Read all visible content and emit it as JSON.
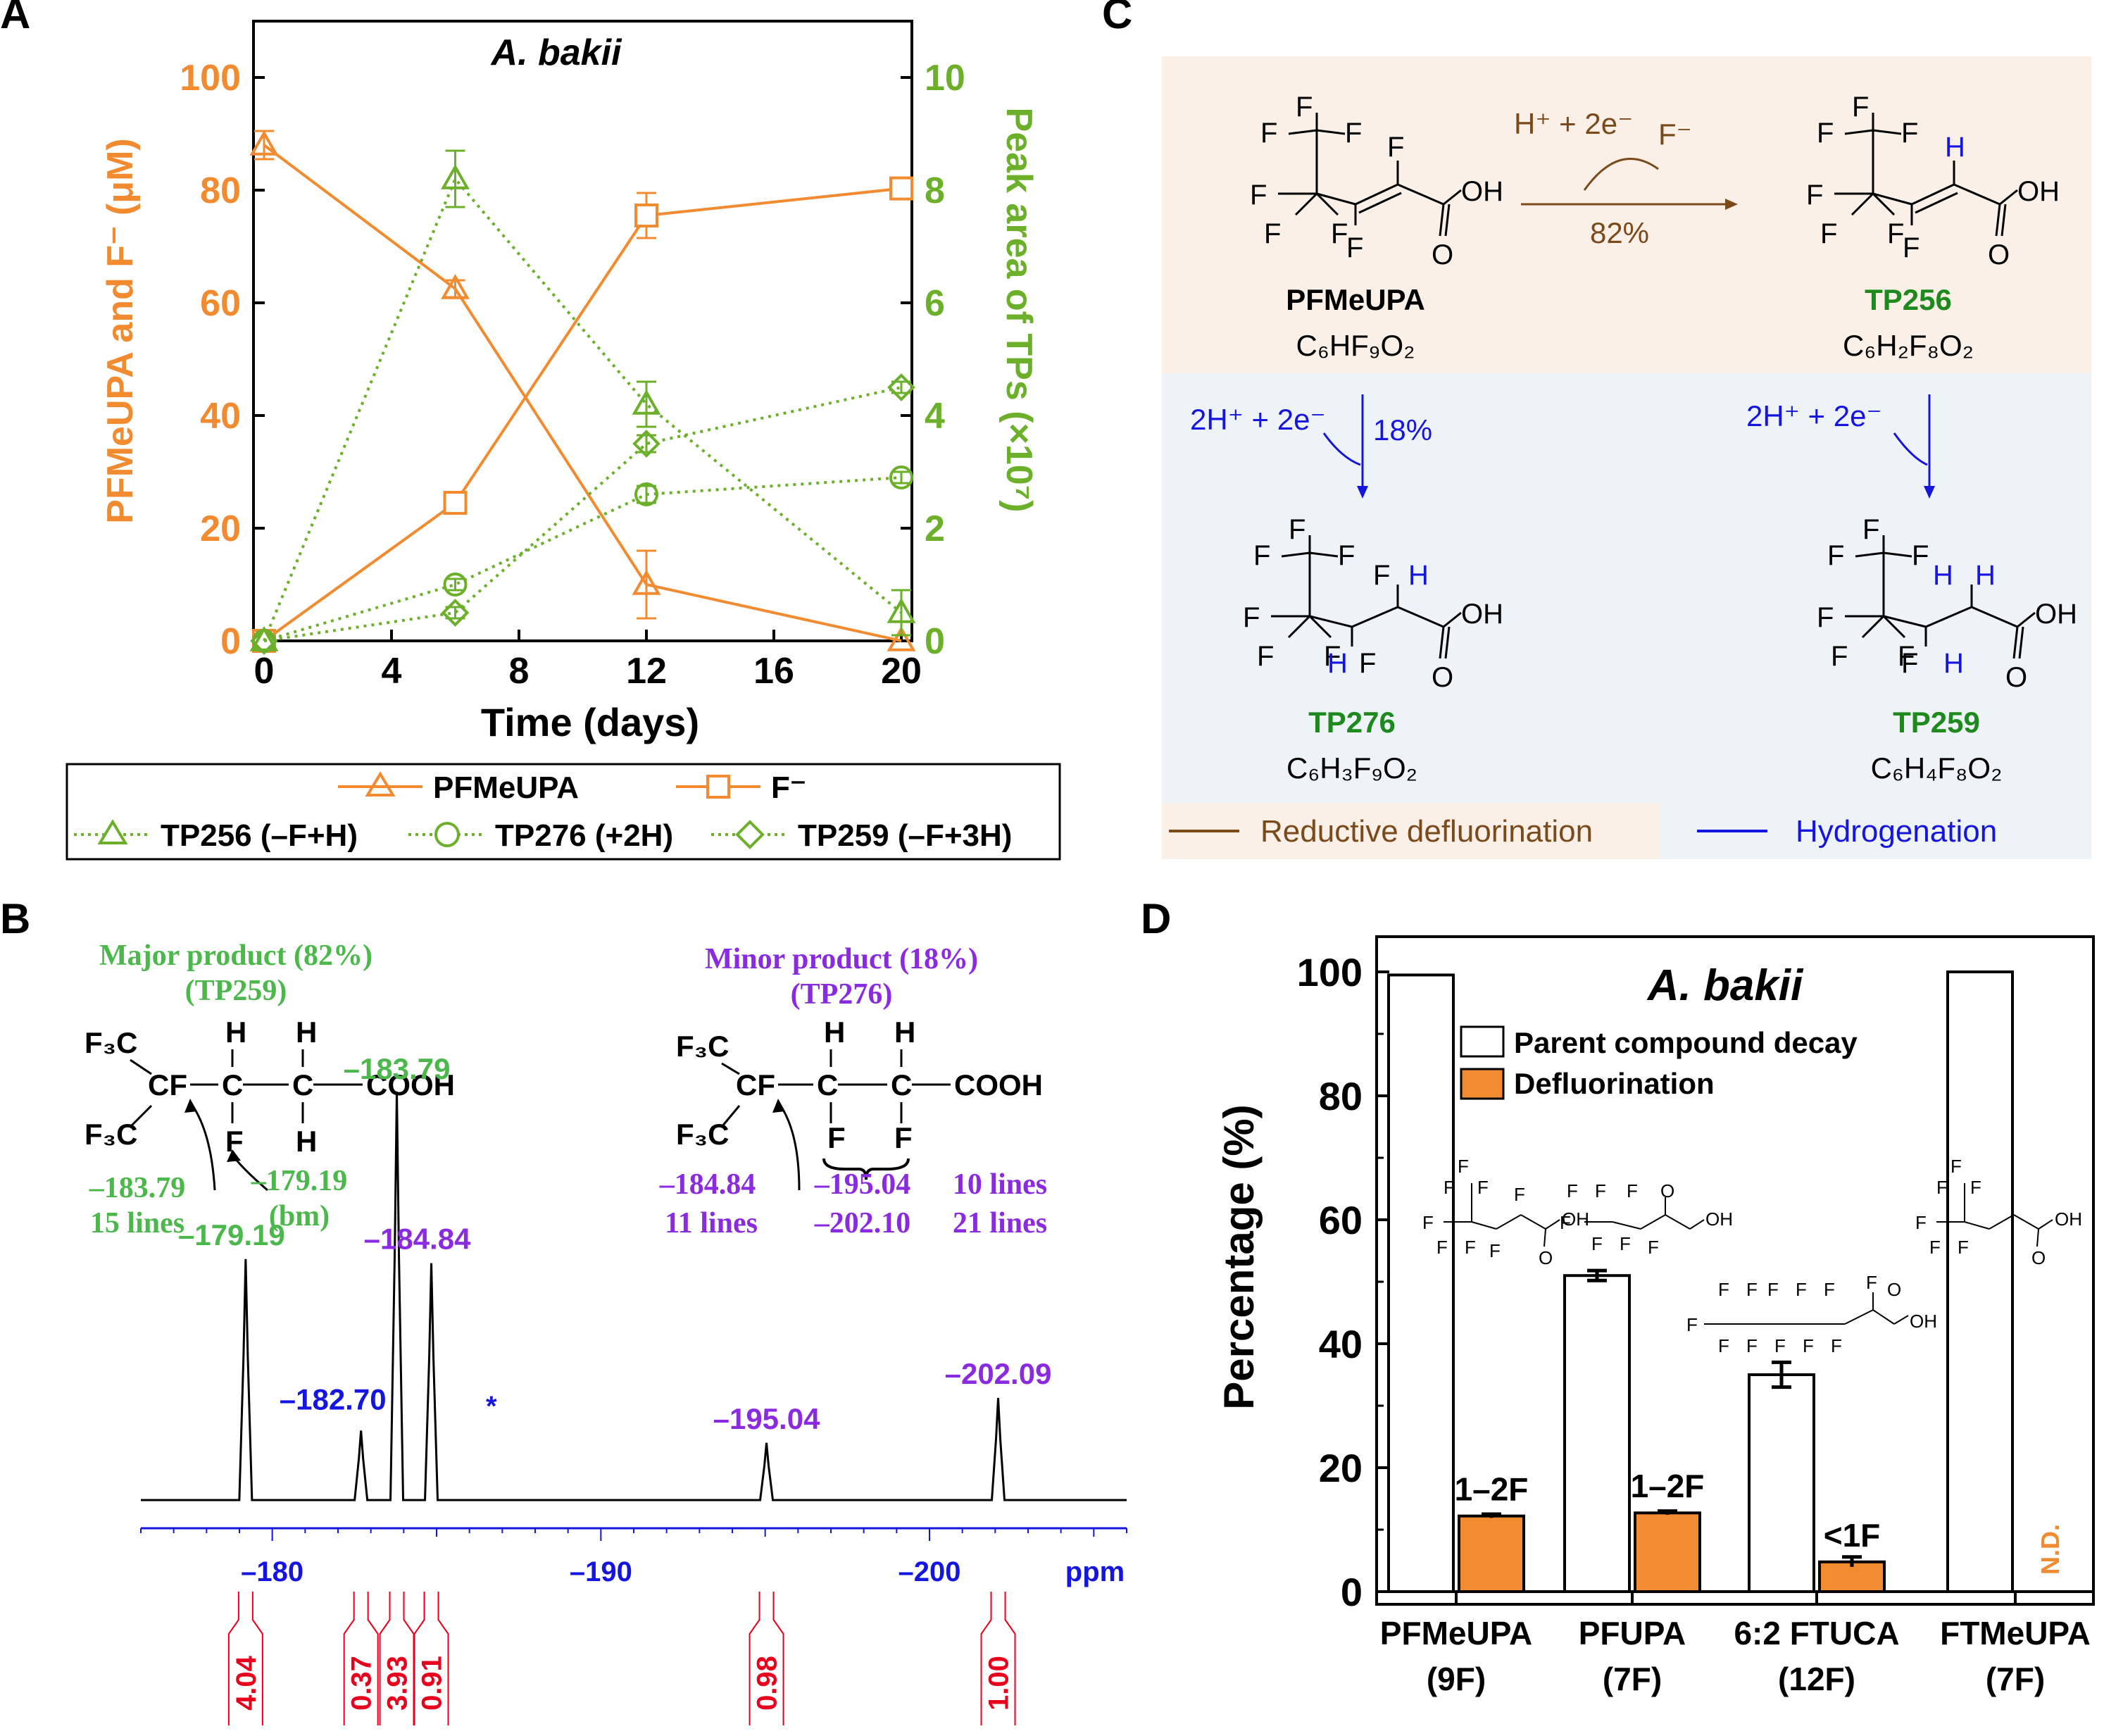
{
  "panel_labels": {
    "a": "A",
    "b": "B",
    "c": "C",
    "d": "D"
  },
  "colors": {
    "orange": "#F28A30",
    "green": "#6BAF2A",
    "darkgreen": "#1E8A1E",
    "blue": "#1515E0",
    "purple": "#8A2BE2",
    "brown": "#7A4A1A",
    "red": "#E8001C",
    "nmr_green": "#4CB84C"
  },
  "panelA": {
    "title": "A. bakii",
    "ylabel_left": "PFMeUPA and F⁻ (μM)",
    "ylabel_right": "Peak area of TPs (×10⁷)",
    "xlabel": "Time (days)",
    "legend": [
      {
        "label": "PFMeUPA",
        "marker": "triangle",
        "style": "solid",
        "color": "orange"
      },
      {
        "label": "F⁻",
        "marker": "square",
        "style": "solid",
        "color": "orange"
      },
      {
        "label": "TP256 (–F+H)",
        "marker": "triangle",
        "style": "dotted",
        "color": "green"
      },
      {
        "label": "TP276 (+2H)",
        "marker": "circle",
        "style": "dotted",
        "color": "green"
      },
      {
        "label": "TP259 (–F+3H)",
        "marker": "diamond",
        "style": "dotted",
        "color": "green"
      }
    ]
  },
  "chart_data": [
    {
      "type": "line",
      "title": "A. bakii",
      "xlabel": "Time (days)",
      "ylabel": "PFMeUPA and F⁻ (μM)",
      "y2label": "Peak area of TPs (×10⁷)",
      "xlim": [
        0,
        20
      ],
      "ylim": [
        0,
        110
      ],
      "y2lim": [
        0,
        11
      ],
      "x_ticks": [
        0,
        4,
        8,
        12,
        16,
        20
      ],
      "y_ticks": [
        0,
        20,
        40,
        60,
        80,
        100
      ],
      "y2_ticks": [
        0,
        2,
        4,
        6,
        8,
        10
      ],
      "x": [
        0,
        6,
        12,
        20
      ],
      "series": [
        {
          "name": "PFMeUPA",
          "axis": "left",
          "values": [
            88,
            62.5,
            10,
            0
          ],
          "err": [
            2.5,
            1.5,
            6,
            0
          ]
        },
        {
          "name": "F⁻",
          "axis": "left",
          "values": [
            0,
            24.5,
            75.5,
            80.3
          ],
          "err": [
            0,
            1.5,
            4,
            1.5
          ]
        },
        {
          "name": "TP256 (–F+H)",
          "axis": "right",
          "values": [
            0,
            8.2,
            4.2,
            0.5
          ],
          "err": [
            0,
            0.5,
            0.4,
            0.4
          ]
        },
        {
          "name": "TP276 (+2H)",
          "axis": "right",
          "values": [
            0,
            1.0,
            2.6,
            2.9
          ],
          "err": [
            0,
            0.1,
            0.15,
            0.1
          ]
        },
        {
          "name": "TP259 (–F+3H)",
          "axis": "right",
          "values": [
            0,
            0.5,
            3.5,
            4.5
          ],
          "err": [
            0,
            0.1,
            0.15,
            0.1
          ]
        }
      ]
    },
    {
      "type": "line",
      "xlabel": "ppm",
      "xlim": [
        -176,
        -206
      ],
      "x_ticks": [
        -180,
        -190,
        -200
      ],
      "peaks": [
        {
          "ppm": -179.19,
          "height": 0.59,
          "color": "nmr_green"
        },
        {
          "ppm": -182.7,
          "height": 0.17,
          "color": "blue"
        },
        {
          "ppm": -183.79,
          "height": 1.0,
          "color": "nmr_green"
        },
        {
          "ppm": -184.84,
          "height": 0.58,
          "color": "purple"
        },
        {
          "ppm": -195.04,
          "height": 0.14,
          "color": "purple"
        },
        {
          "ppm": -202.09,
          "height": 0.25,
          "color": "purple"
        }
      ],
      "integrals": [
        {
          "ppm": -179.19,
          "value": "4.04"
        },
        {
          "ppm": -182.7,
          "value": "0.37"
        },
        {
          "ppm": -183.79,
          "value": "3.93"
        },
        {
          "ppm": -184.84,
          "value": "0.91"
        },
        {
          "ppm": -195.04,
          "value": "0.98"
        },
        {
          "ppm": -202.09,
          "value": "1.00"
        }
      ]
    },
    {
      "type": "bar",
      "title": "A. bakii",
      "ylabel": "Percentage (%)",
      "ylim": [
        0,
        100
      ],
      "y_ticks": [
        0,
        20,
        40,
        60,
        80,
        100
      ],
      "categories": [
        "PFMeUPA (9F)",
        "PFUPA (7F)",
        "6:2 FTUCA (12F)",
        "FTMeUPA (7F)"
      ],
      "series": [
        {
          "name": "Parent compound decay",
          "values": [
            99.5,
            51,
            35,
            100
          ],
          "err": [
            0,
            0.8,
            2,
            0
          ]
        },
        {
          "name": "Defluorination",
          "values": [
            12.2,
            12.7,
            4.8,
            0
          ],
          "err": [
            0.3,
            0.3,
            0.8,
            0
          ]
        }
      ],
      "bar_labels": [
        "1–2F",
        "1–2F",
        "<1F",
        "N.D."
      ]
    }
  ],
  "panelB": {
    "major_title": "Major product (82%)",
    "major_sub": "(TP259)",
    "minor_title": "Minor product (18%)",
    "minor_sub": "(TP276)",
    "major_ann_a": "–183.79",
    "major_ann_a2": "15 lines",
    "major_ann_b": "–179.19",
    "major_ann_b2": "(bm)",
    "minor_ann_a": "–184.84",
    "minor_ann_a2": "11 lines",
    "minor_ann_b": "–195.04",
    "minor_ann_b2": "–202.10",
    "minor_ann_c": "10 lines",
    "minor_ann_c2": "21 lines",
    "peak_labels": [
      "–179.19",
      "–182.70",
      "–183.79",
      "–184.84",
      "–195.04",
      "–202.09"
    ],
    "star": "*",
    "x_tick_labels": [
      "–180",
      "–190",
      "–200"
    ],
    "unit": "ppm",
    "struct": {
      "f3c": "F₃C",
      "cf": "CF",
      "c": "C",
      "h": "H",
      "f": "F",
      "cooh": "COOH"
    }
  },
  "panelC": {
    "arrow1_top": "H⁺ + 2e⁻",
    "arrow1_f": "F⁻",
    "arrow1_pct": "82%",
    "arrow2_top": "2H⁺ + 2e⁻",
    "arrow2_pct": "18%",
    "arrow3_top": "2H⁺ + 2e⁻",
    "compounds": [
      {
        "name": "PFMeUPA",
        "formula": "C₆HF₉O₂"
      },
      {
        "name": "TP256",
        "formula": "C₆H₂F₈O₂"
      },
      {
        "name": "TP276",
        "formula": "C₆H₃F₉O₂"
      },
      {
        "name": "TP259",
        "formula": "C₆H₄F₈O₂"
      }
    ],
    "legend_brown": "Reductive defluorination",
    "legend_blue": "Hydrogenation",
    "atom_f": "F",
    "atom_h": "H",
    "atom_o": "O",
    "atom_oh": "OH"
  },
  "panelD": {
    "title": "A. bakii",
    "ylabel": "Percentage (%)",
    "legend": [
      "Parent compound decay",
      "Defluorination"
    ],
    "cat_names": [
      "PFMeUPA",
      "PFUPA",
      "6:2 FTUCA",
      "FTMeUPA"
    ],
    "cat_counts": [
      "(9F)",
      "(7F)",
      "(12F)",
      "(7F)"
    ]
  }
}
